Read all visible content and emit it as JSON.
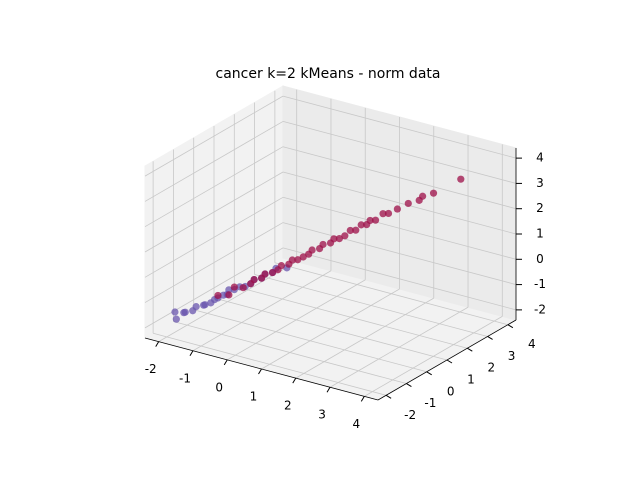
{
  "chart_data": {
    "type": "scatter3d",
    "title": "cancer k=2 kMeans - norm data",
    "xlim": [
      -2.4,
      4.4
    ],
    "ylim": [
      -2.4,
      4.4
    ],
    "zlim": [
      -2.4,
      4.4
    ],
    "xticks": [
      -2,
      -1,
      0,
      1,
      2,
      3,
      4
    ],
    "yticks": [
      -2,
      -1,
      0,
      1,
      2,
      3,
      4
    ],
    "zticks": [
      -2,
      -1,
      0,
      1,
      2,
      3,
      4
    ],
    "grid": true,
    "series": [
      {
        "color": "#6a55ad",
        "x": [
          -2.0,
          -1.9,
          -1.8,
          -1.7,
          -1.6,
          -1.5,
          -1.4,
          -1.3,
          -1.25,
          -1.2,
          -1.1,
          -1.0,
          -0.95,
          -0.9,
          -0.8,
          -0.7,
          -0.6,
          -0.5,
          -0.4,
          -0.3,
          -0.2,
          -0.1,
          0.0,
          0.2
        ],
        "y": [
          -1.6,
          -1.7,
          -1.5,
          -1.6,
          -1.4,
          -1.4,
          -1.2,
          -1.3,
          -1.1,
          -1.0,
          -1.0,
          -0.9,
          -0.8,
          -0.8,
          -0.7,
          -0.6,
          -0.5,
          -0.4,
          -0.4,
          -0.2,
          -0.2,
          0.0,
          0.0,
          0.2
        ],
        "z": [
          -1.6,
          -1.8,
          -1.6,
          -1.5,
          -1.5,
          -1.3,
          -1.3,
          -1.2,
          -1.2,
          -1.1,
          -1.0,
          -0.9,
          -0.9,
          -0.7,
          -0.7,
          -0.6,
          -0.6,
          -0.5,
          -0.3,
          -0.3,
          -0.1,
          -0.1,
          0.1,
          0.1
        ]
      },
      {
        "color": "#9e0f48",
        "x": [
          -1.1,
          -0.9,
          -0.8,
          -0.6,
          -0.5,
          -0.4,
          -0.3,
          -0.2,
          -0.1,
          0.0,
          0.1,
          0.2,
          0.3,
          0.4,
          0.5,
          0.6,
          0.7,
          0.8,
          0.9,
          1.0,
          1.1,
          1.2,
          1.3,
          1.4,
          1.5,
          1.6,
          1.7,
          1.8,
          1.9,
          2.0,
          2.1,
          2.3,
          2.5,
          2.7,
          2.8,
          3.0,
          3.5
        ],
        "y": [
          -1.0,
          -0.8,
          -0.7,
          -0.6,
          -0.4,
          -0.4,
          -0.2,
          -0.2,
          0.0,
          0.1,
          0.1,
          0.3,
          0.3,
          0.4,
          0.5,
          0.6,
          0.6,
          0.8,
          0.8,
          1.0,
          1.0,
          1.1,
          1.2,
          1.3,
          1.4,
          1.5,
          1.6,
          1.6,
          1.7,
          1.9,
          2.0,
          2.1,
          2.3,
          2.5,
          2.5,
          2.7,
          3.2
        ],
        "z": [
          -0.9,
          -0.9,
          -0.6,
          -0.6,
          -0.5,
          -0.3,
          -0.3,
          -0.1,
          -0.1,
          0.0,
          0.2,
          0.2,
          0.4,
          0.4,
          0.5,
          0.6,
          0.8,
          0.8,
          1.0,
          1.0,
          1.2,
          1.2,
          1.3,
          1.5,
          1.5,
          1.7,
          1.7,
          1.9,
          1.9,
          2.1,
          2.1,
          2.3,
          2.5,
          2.6,
          2.8,
          2.9,
          3.4
        ]
      }
    ]
  }
}
